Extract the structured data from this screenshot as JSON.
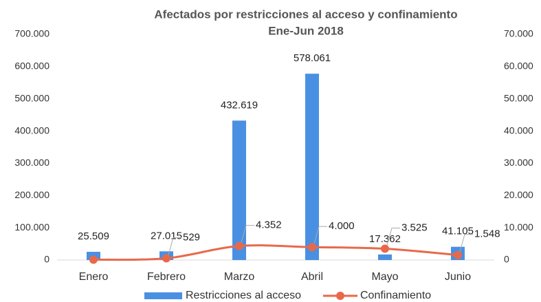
{
  "chart_data": {
    "type": "bar-line",
    "title": "Afectados por restricciones al acceso y confinamiento",
    "subtitle": "Ene-Jun 2018",
    "categories": [
      "Enero",
      "Febrero",
      "Marzo",
      "Abril",
      "Mayo",
      "Junio"
    ],
    "series": [
      {
        "name": "Restricciones al acceso",
        "type": "bar",
        "color": "#4a90e2",
        "axis": "y",
        "values": [
          25509,
          27015,
          432619,
          578061,
          17362,
          41105
        ],
        "value_labels": [
          "25.509",
          "27.015",
          "432.619",
          "578.061",
          "17.362",
          "41.105"
        ]
      },
      {
        "name": "Confinamiento",
        "type": "line",
        "color": "#e8694a",
        "axis": "y2",
        "values": [
          100,
          529,
          4352,
          4000,
          3525,
          1548
        ],
        "value_labels": [
          null,
          "529",
          "4.352",
          "4.000",
          "3.525",
          "1.548"
        ]
      }
    ],
    "ylim": [
      0,
      700000
    ],
    "yticks": [
      0,
      {
        "value": 100000,
        "label": "100.000"
      },
      {
        "value": 200000,
        "label": "200.000"
      },
      {
        "value": 300000,
        "label": "300.000"
      },
      {
        "value": 400000,
        "label": "400.000"
      },
      {
        "value": 500000,
        "label": "500.000"
      },
      {
        "value": 600000,
        "label": "600.000"
      },
      {
        "value": 700000,
        "label": "700.000"
      }
    ],
    "y2lim": [
      0,
      70000
    ],
    "y2ticks": [
      0,
      {
        "value": 10000,
        "label": "10.000"
      },
      {
        "value": 20000,
        "label": "20.000"
      },
      {
        "value": 30000,
        "label": "30.000"
      },
      {
        "value": 40000,
        "label": "40.000"
      },
      {
        "value": 50000,
        "label": "50.000"
      },
      {
        "value": 60000,
        "label": "60.000"
      },
      {
        "value": 70000,
        "label": "70.000"
      }
    ],
    "grid": false,
    "legend": "bottom"
  }
}
